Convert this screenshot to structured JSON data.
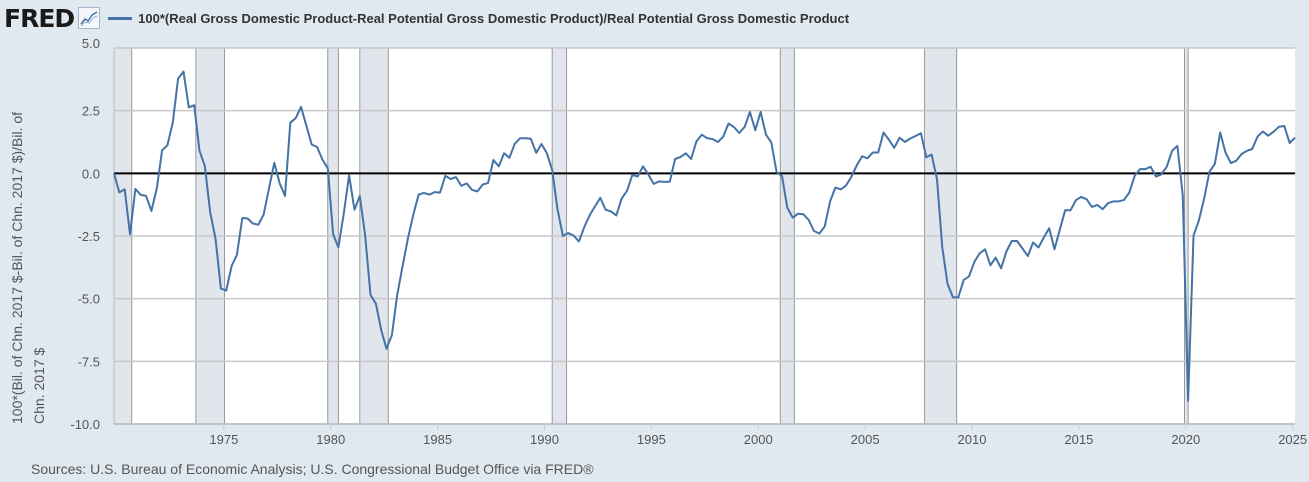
{
  "header": {
    "logo": "FRED",
    "logo_icon": "line-chart-icon"
  },
  "colors": {
    "series": "#4572a7",
    "recession": "#e1e6ec",
    "background": "#e1e9f0",
    "zero_line": "#000000"
  },
  "chart_data": {
    "type": "line",
    "title": "",
    "ylabel": "100*(Bil. of Chn. 2017 $-Bil. of Chn. 2017 $)/Bil. of Chn. 2017 $",
    "ylabel_lines": [
      "100*(Bil. of Chn. 2017 $-Bil. of Chn. 2017 $)/Bil. of",
      "Chn. 2017 $"
    ],
    "xlabel": "",
    "ylim": [
      -10,
      5
    ],
    "xlim": [
      1970,
      2025.25
    ],
    "yticks": [
      "5.0",
      "2.5",
      "0.0",
      "-2.5",
      "-5.0",
      "-7.5",
      "-10.0"
    ],
    "ytick_values": [
      5,
      2.5,
      0,
      -2.5,
      -5,
      -7.5,
      -10
    ],
    "xticks": [
      "1975",
      "1980",
      "1985",
      "1990",
      "1995",
      "2000",
      "2005",
      "2010",
      "2015",
      "2020",
      "2025"
    ],
    "grid": "horizontal",
    "legend_placement": "top",
    "zero_line": true,
    "frequency": "quarterly",
    "series": [
      {
        "name": "100*(Real Gross Domestic Product-Real Potential Gross Domestic Product)/Real Potential Gross Domestic Product",
        "start": "1970-Q1",
        "values": [
          0,
          -0.76,
          -0.64,
          -2.43,
          -0.62,
          -0.86,
          -0.9,
          -1.5,
          -0.6,
          0.92,
          1.12,
          2.03,
          3.78,
          4.06,
          2.63,
          2.72,
          0.9,
          0.3,
          -1.56,
          -2.6,
          -4.6,
          -4.68,
          -3.7,
          -3.25,
          -1.78,
          -1.8,
          -2.0,
          -2.05,
          -1.65,
          -0.6,
          0.42,
          -0.4,
          -0.9,
          2.02,
          2.2,
          2.65,
          1.9,
          1.15,
          1.05,
          0.55,
          0.2,
          -2.43,
          -2.95,
          -1.6,
          -0.08,
          -1.45,
          -0.9,
          -2.5,
          -4.85,
          -5.2,
          -6.25,
          -7.0,
          -6.45,
          -4.85,
          -3.7,
          -2.6,
          -1.65,
          -0.85,
          -0.78,
          -0.85,
          -0.75,
          -0.77,
          -0.1,
          -0.23,
          -0.15,
          -0.5,
          -0.4,
          -0.66,
          -0.72,
          -0.45,
          -0.38,
          0.53,
          0.28,
          0.8,
          0.62,
          1.18,
          1.4,
          1.4,
          1.38,
          0.82,
          1.17,
          0.8,
          0.13,
          -1.43,
          -2.5,
          -2.38,
          -2.48,
          -2.72,
          -2.14,
          -1.68,
          -1.32,
          -0.98,
          -1.45,
          -1.52,
          -1.68,
          -1.0,
          -0.7,
          -0.06,
          -0.13,
          0.28,
          -0.05,
          -0.42,
          -0.32,
          -0.34,
          -0.33,
          0.57,
          0.65,
          0.8,
          0.57,
          1.28,
          1.54,
          1.4,
          1.37,
          1.25,
          1.46,
          1.99,
          1.85,
          1.61,
          1.85,
          2.45,
          1.72,
          2.45,
          1.54,
          1.24,
          0.05,
          -0.11,
          -1.37,
          -1.77,
          -1.61,
          -1.63,
          -1.86,
          -2.3,
          -2.4,
          -2.12,
          -1.12,
          -0.57,
          -0.64,
          -0.48,
          -0.13,
          0.32,
          0.68,
          0.6,
          0.83,
          0.83,
          1.63,
          1.34,
          1.02,
          1.42,
          1.25,
          1.39,
          1.49,
          1.6,
          0.64,
          0.75,
          -0.23,
          -2.96,
          -4.42,
          -4.95,
          -4.95,
          -4.25,
          -4.11,
          -3.53,
          -3.19,
          -3.03,
          -3.67,
          -3.36,
          -3.79,
          -3.12,
          -2.7,
          -2.7,
          -3.0,
          -3.3,
          -2.76,
          -2.96,
          -2.56,
          -2.19,
          -3.03,
          -2.23,
          -1.47,
          -1.47,
          -1.07,
          -0.94,
          -1.03,
          -1.34,
          -1.26,
          -1.43,
          -1.19,
          -1.12,
          -1.12,
          -1.06,
          -0.77,
          -0.1,
          0.17,
          0.17,
          0.26,
          -0.13,
          -0.04,
          0.26,
          0.9,
          1.1,
          -0.9,
          -9.08,
          -2.49,
          -1.89,
          -1.0,
          0.07,
          0.37,
          1.63,
          0.83,
          0.41,
          0.5,
          0.77,
          0.9,
          0.97,
          1.47,
          1.67,
          1.5,
          1.66,
          1.86,
          1.89,
          1.21,
          1.42
        ]
      }
    ],
    "recessions": [
      [
        1969.92,
        1970.83
      ],
      [
        1973.83,
        1975.17
      ],
      [
        1980.0,
        1980.5
      ],
      [
        1981.5,
        1982.83
      ],
      [
        1990.5,
        1991.17
      ],
      [
        2001.17,
        2001.83
      ],
      [
        2007.92,
        2009.42
      ],
      [
        2020.08,
        2020.25
      ]
    ]
  },
  "footer": {
    "source": "Sources: U.S. Bureau of Economic Analysis; U.S. Congressional Budget Office via FRED®"
  }
}
